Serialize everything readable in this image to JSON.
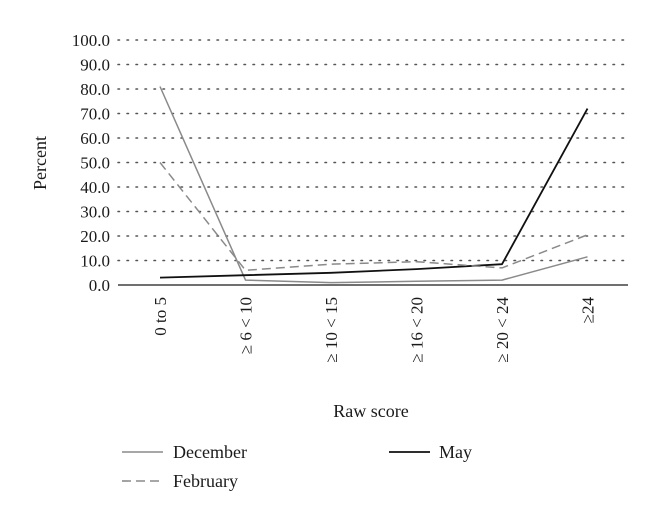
{
  "chart_data": {
    "type": "line",
    "ylabel": "Percent",
    "xlabel": "Raw score",
    "categories": [
      "0 to 5",
      "≥ 6 < 10",
      "≥ 10 < 15",
      "≥ 16 < 20",
      "≥ 20 < 24",
      "≥24"
    ],
    "yticks": [
      "0.0",
      "10.0",
      "20.0",
      "30.0",
      "40.0",
      "50.0",
      "60.0",
      "70.0",
      "80.0",
      "90.0",
      "100.0"
    ],
    "ylim": [
      0,
      100
    ],
    "grid": true,
    "legend_position": "bottom",
    "series": [
      {
        "name": "December",
        "color": "#8a8a8a",
        "dash": "solid",
        "values": [
          81,
          2,
          1,
          1.5,
          2,
          11.5
        ]
      },
      {
        "name": "May",
        "color": "#111111",
        "dash": "solid",
        "values": [
          3,
          4,
          5,
          6.5,
          8.5,
          72
        ]
      },
      {
        "name": "February",
        "color": "#8a8a8a",
        "dash": "dashed",
        "values": [
          50,
          6,
          8.5,
          9.5,
          7,
          20.5
        ]
      }
    ]
  }
}
